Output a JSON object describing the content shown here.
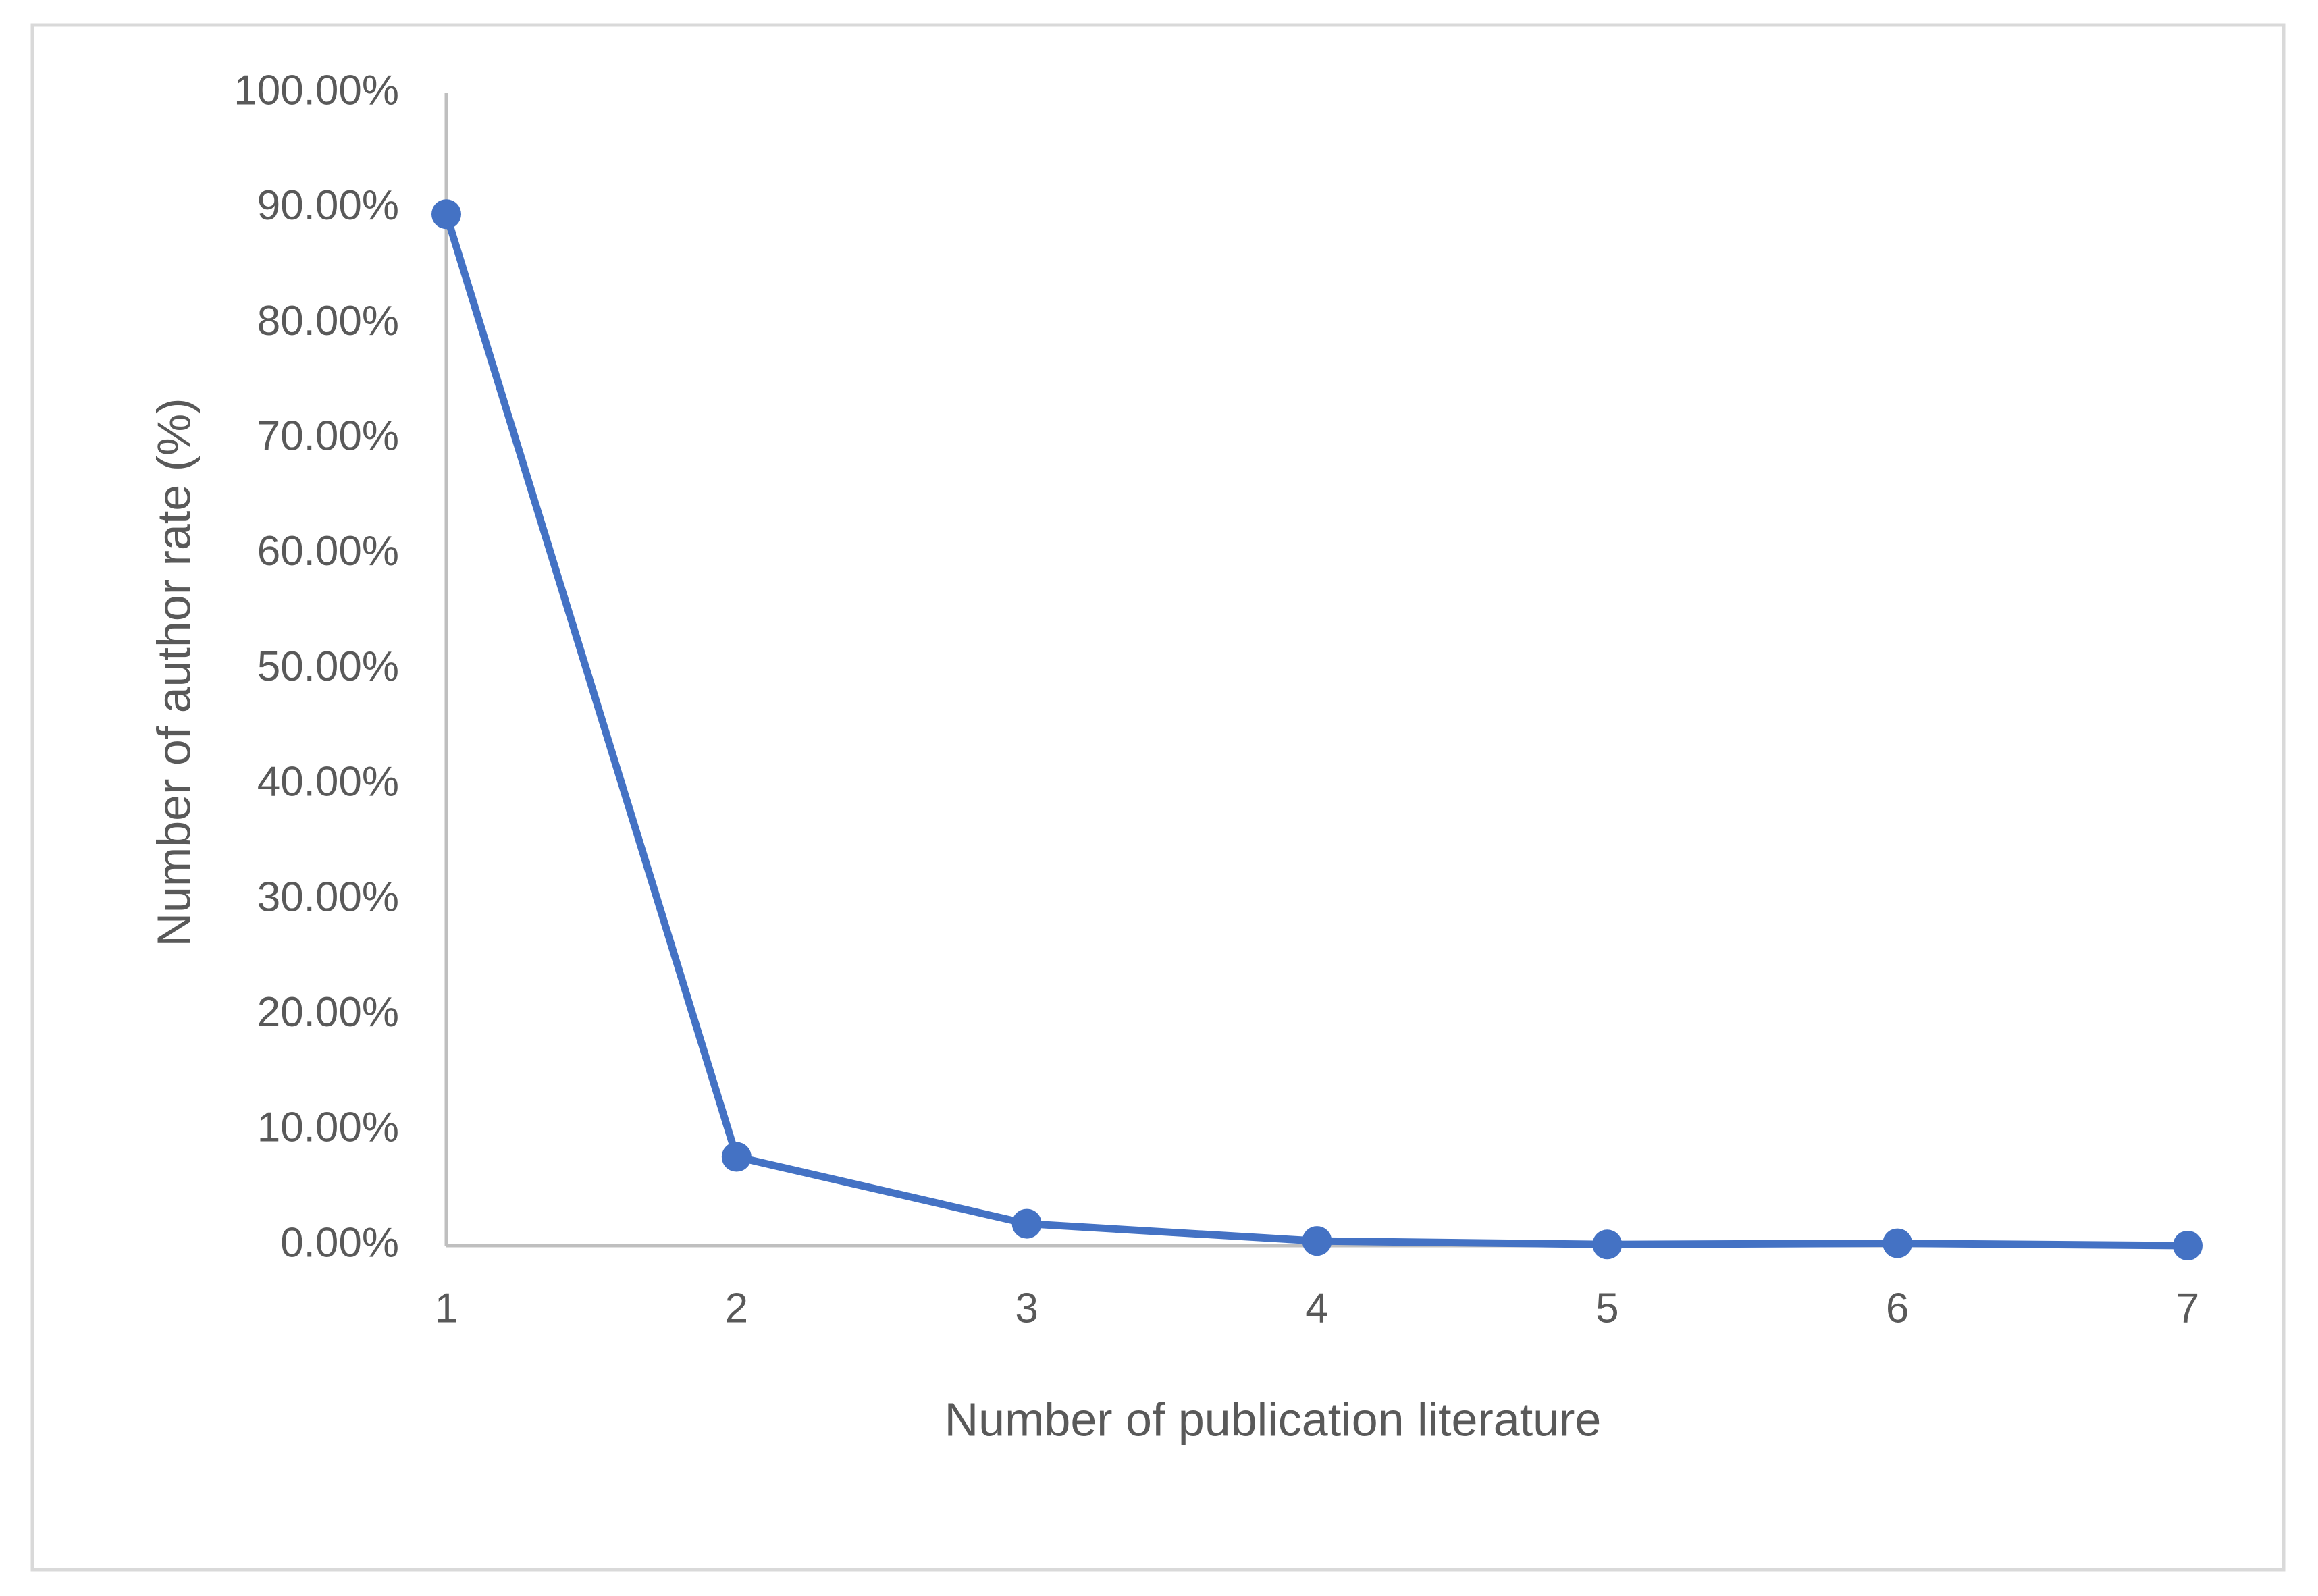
{
  "chart_data": {
    "type": "line",
    "x_label": "Number of publication literature",
    "y_label": "Number of author rate (%)",
    "x": [
      1,
      2,
      3,
      4,
      5,
      6,
      7
    ],
    "xlim": [
      1,
      7
    ],
    "xticks": [
      1,
      2,
      3,
      4,
      5,
      6,
      7
    ],
    "series": [
      {
        "name": "Number of author rate",
        "color": "#4472c4",
        "values": [
          89.5,
          7.7,
          1.9,
          0.4,
          0.1,
          0.2,
          0.0
        ]
      }
    ],
    "ylim": [
      0,
      100
    ],
    "yticks": [
      {
        "value": 0,
        "label": "0.00%"
      },
      {
        "value": 10,
        "label": "10.00%"
      },
      {
        "value": 20,
        "label": "20.00%"
      },
      {
        "value": 30,
        "label": "30.00%"
      },
      {
        "value": 40,
        "label": "40.00%"
      },
      {
        "value": 50,
        "label": "50.00%"
      },
      {
        "value": 60,
        "label": "60.00%"
      },
      {
        "value": 70,
        "label": "70.00%"
      },
      {
        "value": 80,
        "label": "80.00%"
      },
      {
        "value": 90,
        "label": "90.00%"
      },
      {
        "value": 100,
        "label": "100.00%"
      }
    ],
    "grid": false
  }
}
